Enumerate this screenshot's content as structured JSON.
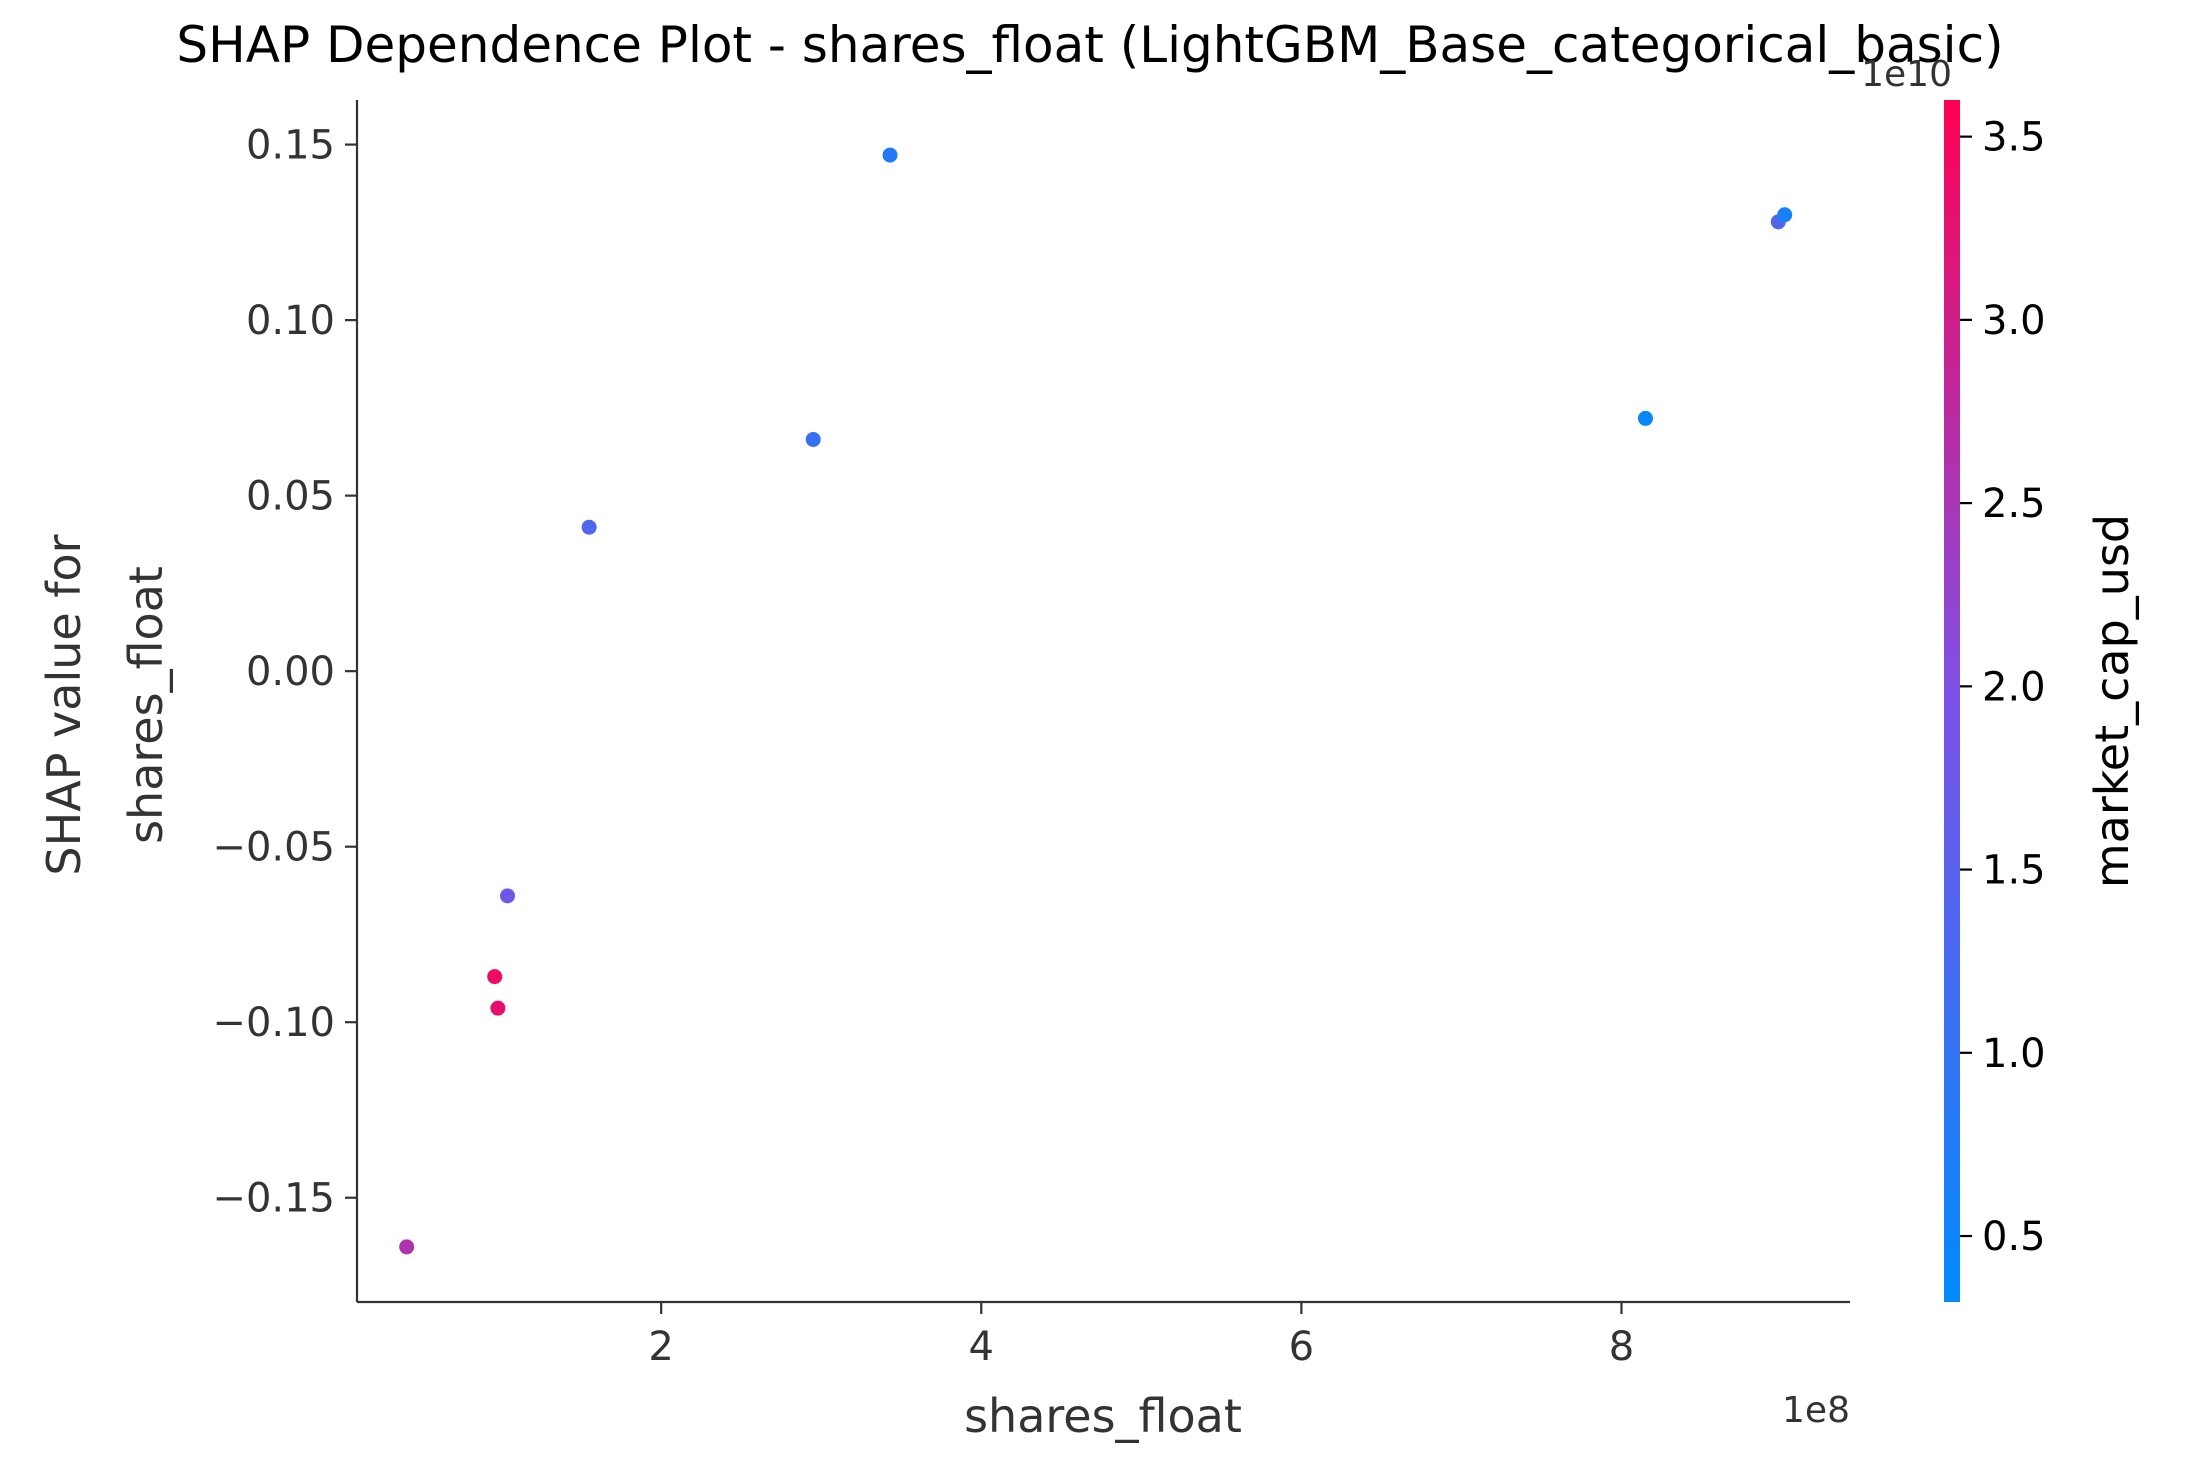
{
  "chart_data": {
    "type": "scatter",
    "title": "SHAP Dependence Plot - shares_float (LightGBM_Base_categorical_basic)",
    "xlabel": "shares_float",
    "ylabel_lines": [
      "SHAP value for",
      "shares_float"
    ],
    "x_offset_label": "1e8",
    "xlim": [
      0.0996,
      9.4278
    ],
    "ylim": [
      -0.1797,
      0.1627
    ],
    "x_ticks": [
      2,
      4,
      6,
      8
    ],
    "x_tick_labels": [
      "2",
      "4",
      "6",
      "8"
    ],
    "y_ticks": [
      0.15,
      0.1,
      0.05,
      0.0,
      -0.05,
      -0.1,
      -0.15
    ],
    "y_tick_labels": [
      "0.15",
      "0.10",
      "0.05",
      "0.00",
      "−0.05",
      "−0.10",
      "−0.15"
    ],
    "grid": false,
    "colorbar": {
      "label": "market_cap_usd",
      "offset_label": "1e10",
      "range": [
        0.32,
        3.6
      ],
      "ticks": [
        0.5,
        1.0,
        1.5,
        2.0,
        2.5,
        3.0,
        3.5
      ],
      "tick_labels": [
        "0.5",
        "1.0",
        "1.5",
        "2.0",
        "2.5",
        "3.0",
        "3.5"
      ],
      "colors": [
        "#008afb",
        "#ff0052"
      ]
    },
    "points": [
      {
        "x": 0.41,
        "y": -0.164,
        "color_value": 2.6
      },
      {
        "x": 0.96,
        "y": -0.087,
        "color_value": 3.4
      },
      {
        "x": 0.98,
        "y": -0.096,
        "color_value": 3.3
      },
      {
        "x": 1.04,
        "y": -0.064,
        "color_value": 1.8
      },
      {
        "x": 1.55,
        "y": 0.041,
        "color_value": 1.4
      },
      {
        "x": 2.95,
        "y": 0.066,
        "color_value": 1.05
      },
      {
        "x": 3.43,
        "y": 0.147,
        "color_value": 0.8
      },
      {
        "x": 8.15,
        "y": 0.072,
        "color_value": 0.45
      },
      {
        "x": 8.98,
        "y": 0.128,
        "color_value": 1.4
      },
      {
        "x": 9.02,
        "y": 0.13,
        "color_value": 0.6
      }
    ]
  }
}
